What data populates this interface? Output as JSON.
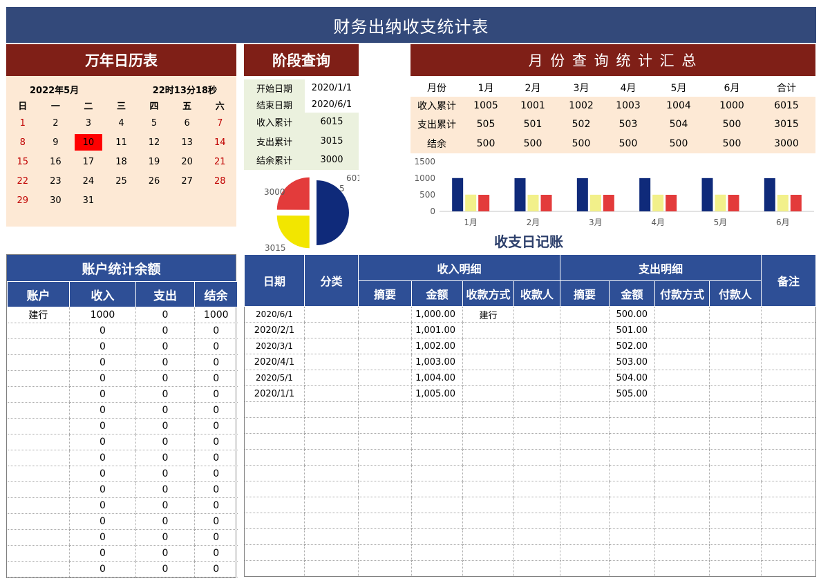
{
  "title": "财务出纳收支统计表",
  "calendar": {
    "header": "万年日历表",
    "month_label": "2022年5月",
    "time_label": "22时13分18秒",
    "weekdays": [
      "日",
      "一",
      "二",
      "三",
      "四",
      "五",
      "六"
    ],
    "weeks": [
      [
        "1",
        "2",
        "3",
        "4",
        "5",
        "6",
        "7"
      ],
      [
        "8",
        "9",
        "10",
        "11",
        "12",
        "13",
        "14"
      ],
      [
        "15",
        "16",
        "17",
        "18",
        "19",
        "20",
        "21"
      ],
      [
        "22",
        "23",
        "24",
        "25",
        "26",
        "27",
        "28"
      ],
      [
        "29",
        "30",
        "31",
        "",
        "",
        "",
        ""
      ]
    ],
    "today": "10"
  },
  "stage_query": {
    "header": "阶段查询",
    "rows": [
      {
        "label": "开始日期",
        "value": "2020/1/1"
      },
      {
        "label": "结束日期",
        "value": "2020/6/1"
      },
      {
        "label": "收入累计",
        "value": "6015"
      },
      {
        "label": "支出累计",
        "value": "3015"
      },
      {
        "label": "结余累计",
        "value": "3000"
      }
    ],
    "pie_labels": {
      "income": "601\n5",
      "expense": "3015",
      "balance": "3000"
    }
  },
  "monthly": {
    "header": "月 份 查 询 统 计 汇 总",
    "columns": [
      "月份",
      "1月",
      "2月",
      "3月",
      "4月",
      "5月",
      "6月",
      "合计"
    ],
    "rows": [
      [
        "收入累计",
        "1005",
        "1001",
        "1002",
        "1003",
        "1004",
        "1000",
        "6015"
      ],
      [
        "支出累计",
        "505",
        "501",
        "502",
        "503",
        "504",
        "500",
        "3015"
      ],
      [
        "结余",
        "500",
        "500",
        "500",
        "500",
        "500",
        "500",
        "3000"
      ]
    ]
  },
  "chart_data": {
    "type": "bar",
    "categories": [
      "1月",
      "2月",
      "3月",
      "4月",
      "5月",
      "6月"
    ],
    "series": [
      {
        "values": [
          1005,
          1001,
          1002,
          1003,
          1004,
          1000
        ]
      },
      {
        "values": [
          505,
          501,
          502,
          503,
          504,
          500
        ]
      },
      {
        "values": [
          500,
          500,
          500,
          500,
          500,
          500
        ]
      }
    ],
    "ylim": [
      0,
      1500
    ],
    "yticks": [
      "1500",
      "1000",
      "500",
      "0"
    ],
    "colors": [
      "#0f2a7a",
      "#f2f08a",
      "#e33b3b"
    ]
  },
  "pie_data": {
    "type": "pie",
    "values": [
      6015,
      3015,
      3000
    ],
    "colors": [
      "#0f2a7a",
      "#f2e600",
      "#e33b3b"
    ]
  },
  "ledger_title": "收支日记账",
  "accounts": {
    "header": "账户统计余额",
    "columns": [
      "账户",
      "收入",
      "支出",
      "结余"
    ],
    "rows": [
      [
        "建行",
        "1000",
        "0",
        "1000"
      ],
      [
        "",
        "0",
        "0",
        "0"
      ],
      [
        "",
        "0",
        "0",
        "0"
      ],
      [
        "",
        "0",
        "0",
        "0"
      ],
      [
        "",
        "0",
        "0",
        "0"
      ],
      [
        "",
        "0",
        "0",
        "0"
      ],
      [
        "",
        "0",
        "0",
        "0"
      ],
      [
        "",
        "0",
        "0",
        "0"
      ],
      [
        "",
        "0",
        "0",
        "0"
      ],
      [
        "",
        "0",
        "0",
        "0"
      ],
      [
        "",
        "0",
        "0",
        "0"
      ],
      [
        "",
        "0",
        "0",
        "0"
      ],
      [
        "",
        "0",
        "0",
        "0"
      ],
      [
        "",
        "0",
        "0",
        "0"
      ],
      [
        "",
        "0",
        "0",
        "0"
      ],
      [
        "",
        "0",
        "0",
        "0"
      ],
      [
        "",
        "0",
        "0",
        "0"
      ]
    ]
  },
  "ledger": {
    "col_date": "日期",
    "col_category": "分类",
    "income_group": "收入明细",
    "expense_group": "支出明细",
    "col_note": "备注",
    "income_cols": [
      "摘要",
      "金额",
      "收款方式",
      "收款人"
    ],
    "expense_cols": [
      "摘要",
      "金额",
      "付款方式",
      "付款人"
    ],
    "rows": [
      {
        "date": "2020/6/1",
        "income_amount": "1,000.00",
        "income_method": "建行",
        "expense_amount": "500.00",
        "small": true
      },
      {
        "date": "2020/2/1",
        "income_amount": "1,001.00",
        "income_method": "",
        "expense_amount": "501.00",
        "small": false
      },
      {
        "date": "2020/3/1",
        "income_amount": "1,002.00",
        "income_method": "",
        "expense_amount": "502.00",
        "small": true
      },
      {
        "date": "2020/4/1",
        "income_amount": "1,003.00",
        "income_method": "",
        "expense_amount": "503.00",
        "small": false
      },
      {
        "date": "2020/5/1",
        "income_amount": "1,004.00",
        "income_method": "",
        "expense_amount": "504.00",
        "small": true
      },
      {
        "date": "2020/1/1",
        "income_amount": "1,005.00",
        "income_method": "",
        "expense_amount": "505.00",
        "small": false
      }
    ],
    "empty_rows": 11
  }
}
